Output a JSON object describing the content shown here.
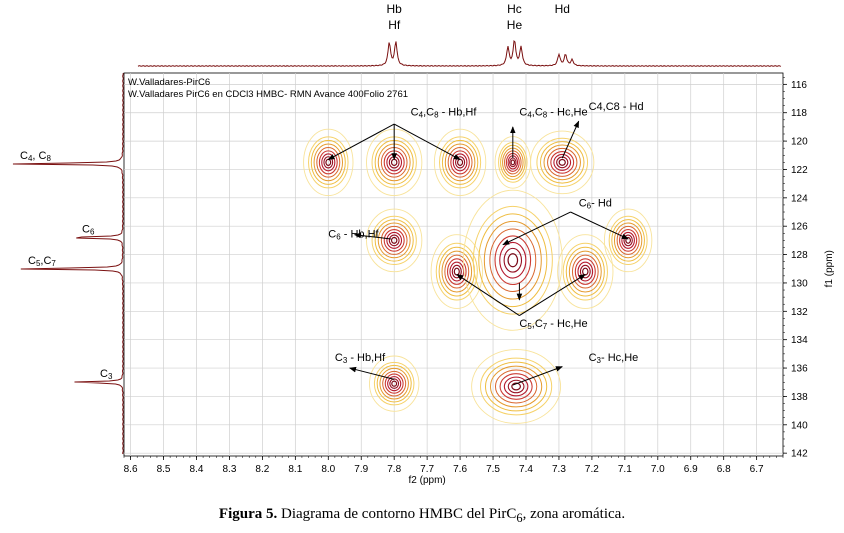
{
  "chart_data": {
    "type": "contour",
    "header_lines": [
      "W.Valladares-PirC6",
      "W.Valladares PirC6 en CDCl3 HMBC- RMN Avance 400Folio 2761"
    ],
    "xlabel": "f2 (ppm)",
    "ylabel": "f1 (ppm)",
    "xlim": [
      8.62,
      6.62
    ],
    "ylim": [
      115.2,
      142.2
    ],
    "x_ticks": [
      "8.6",
      "8.5",
      "8.4",
      "8.3",
      "8.2",
      "8.1",
      "8.0",
      "7.9",
      "7.8",
      "7.7",
      "7.6",
      "7.5",
      "7.4",
      "7.3",
      "7.2",
      "7.1",
      "7.0",
      "6.9",
      "6.8",
      "6.7"
    ],
    "y_ticks": [
      "116",
      "118",
      "120",
      "122",
      "124",
      "126",
      "128",
      "130",
      "132",
      "134",
      "136",
      "138",
      "140",
      "142"
    ],
    "top_projection_labels": [
      {
        "lines": [
          "Hb",
          "Hf"
        ],
        "x": 7.8
      },
      {
        "lines": [
          "Hc",
          "He"
        ],
        "x": 7.435
      },
      {
        "lines": [
          "Hd"
        ],
        "x": 7.29
      }
    ],
    "top_peaks": [
      {
        "x": 7.815,
        "h": 0.78
      },
      {
        "x": 7.795,
        "h": 0.8
      },
      {
        "x": 7.455,
        "h": 0.62
      },
      {
        "x": 7.435,
        "h": 0.85
      },
      {
        "x": 7.415,
        "h": 0.62
      },
      {
        "x": 7.3,
        "h": 0.38
      },
      {
        "x": 7.28,
        "h": 0.38
      },
      {
        "x": 7.26,
        "h": 0.2
      }
    ],
    "side_labels": [
      {
        "main": "C",
        "sub": "4",
        "sep": ", ",
        "main2": "C",
        "sub2": "8",
        "y": 121.6
      },
      {
        "main": "C",
        "sub": "6",
        "y": 126.8
      },
      {
        "main": "C",
        "sub": "5",
        "sep": ",",
        "main2": "C",
        "sub2": "7",
        "y": 129.0
      },
      {
        "main": "C",
        "sub": "3",
        "y": 137.0
      }
    ],
    "side_peaks": [
      {
        "y": 121.6,
        "h": 1.0
      },
      {
        "y": 126.8,
        "h": 0.55
      },
      {
        "y": 129.0,
        "h": 0.95
      },
      {
        "y": 137.0,
        "h": 0.45
      }
    ],
    "cross_peaks": [
      {
        "x": 8.0,
        "y": 121.5,
        "sx": 0.025,
        "sy": 0.9
      },
      {
        "x": 7.8,
        "y": 121.5,
        "sx": 0.028,
        "sy": 0.9
      },
      {
        "x": 7.6,
        "y": 121.5,
        "sx": 0.026,
        "sy": 0.9
      },
      {
        "x": 7.44,
        "y": 121.5,
        "sx": 0.018,
        "sy": 0.7
      },
      {
        "x": 7.29,
        "y": 121.5,
        "sx": 0.032,
        "sy": 0.85
      },
      {
        "x": 7.8,
        "y": 127.0,
        "sx": 0.028,
        "sy": 0.85
      },
      {
        "x": 7.09,
        "y": 127.0,
        "sx": 0.024,
        "sy": 0.85
      },
      {
        "x": 7.61,
        "y": 129.2,
        "sx": 0.026,
        "sy": 1.0
      },
      {
        "x": 7.44,
        "y": 128.4,
        "sx": 0.05,
        "sy": 1.9
      },
      {
        "x": 7.22,
        "y": 129.2,
        "sx": 0.028,
        "sy": 1.0
      },
      {
        "x": 7.8,
        "y": 137.1,
        "sx": 0.025,
        "sy": 0.75
      },
      {
        "x": 7.43,
        "y": 137.3,
        "sx": 0.045,
        "sy": 1.0
      }
    ],
    "annotations": [
      {
        "label": {
          "t": "C",
          "s": "4",
          "m": ",C",
          "s2": "8",
          "r": " - Hb,Hf"
        },
        "x": 7.75,
        "y": 118.2,
        "arrows": [],
        "lines": [
          [
            7.8,
            118.8,
            8.0,
            121.3
          ],
          [
            7.8,
            118.8,
            7.8,
            121.3
          ],
          [
            7.8,
            118.8,
            7.6,
            121.3
          ]
        ]
      },
      {
        "label": {
          "t": "C",
          "s": "4",
          "m": ",C",
          "s2": "8",
          "r": " - Hc,He"
        },
        "x": 7.42,
        "y": 118.2,
        "arrows": [
          [
            7.44,
            121.2,
            7.44,
            119.0
          ]
        ],
        "lines": []
      },
      {
        "label": {
          "t": "C4,C8 - Hd",
          "s": "",
          "m": "",
          "s2": "",
          "r": ""
        },
        "x": 7.21,
        "y": 117.8,
        "arrows": [
          [
            7.29,
            121.2,
            7.24,
            118.6
          ]
        ],
        "lines": []
      },
      {
        "label": {
          "t": "C",
          "s": "6",
          "m": "",
          "s2": "",
          "r": " - Hb,Hf"
        },
        "x": 8.0,
        "y": 126.8,
        "arrows": [
          [
            7.81,
            126.9,
            7.92,
            126.6
          ]
        ],
        "lines": []
      },
      {
        "label": {
          "t": "C",
          "s": "6",
          "m": "",
          "s2": "",
          "r": "- Hd"
        },
        "x": 7.24,
        "y": 124.6,
        "arrows": [],
        "lines": [
          [
            7.265,
            125.0,
            7.47,
            127.3
          ],
          [
            7.265,
            125.0,
            7.09,
            126.9
          ]
        ]
      },
      {
        "label": {
          "t": "C",
          "s": "5",
          "m": ",C",
          "s2": "7",
          "r": " - Hc,He"
        },
        "x": 7.42,
        "y": 133.1,
        "arrows": [
          [
            7.42,
            130.0,
            7.42,
            131.2
          ]
        ],
        "lines": [
          [
            7.42,
            132.3,
            7.61,
            129.4
          ],
          [
            7.42,
            132.3,
            7.22,
            129.4
          ]
        ]
      },
      {
        "label": {
          "t": "C",
          "s": "3",
          "m": "",
          "s2": "",
          "r": " - Hb,Hf"
        },
        "x": 7.98,
        "y": 135.5,
        "arrows": [
          [
            7.8,
            136.8,
            7.935,
            136.0
          ]
        ],
        "lines": []
      },
      {
        "label": {
          "t": "C",
          "s": "3",
          "m": "",
          "s2": "",
          "r": "- Hc,He"
        },
        "x": 7.21,
        "y": 135.5,
        "arrows": [
          [
            7.44,
            137.2,
            7.29,
            135.9
          ]
        ],
        "lines": []
      }
    ]
  },
  "caption": {
    "prefix": "Figura 5.",
    "text": "Diagrama de contorno HMBC del PirC",
    "sub": "6",
    "suffix": ", zona aromática."
  }
}
